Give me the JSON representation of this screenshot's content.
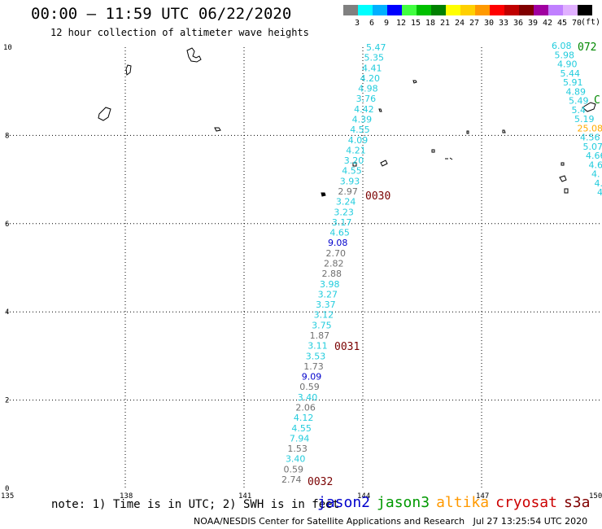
{
  "title": "00:00 – 11:59 UTC 06/22/2020",
  "subtitle": "12 hour collection of altimeter wave heights",
  "legend": {
    "colors": [
      "#808080",
      "#00ffff",
      "#00b0ff",
      "#0000ff",
      "#40ff40",
      "#00c000",
      "#008000",
      "#ffff00",
      "#ffd000",
      "#ff9900",
      "#ff0000",
      "#c00000",
      "#800000",
      "#a000a0",
      "#c080ff",
      "#e0b0ff",
      "#000000"
    ],
    "labels": [
      "3",
      "6",
      "9",
      "12",
      "15",
      "18",
      "21",
      "24",
      "27",
      "30",
      "33",
      "36",
      "39",
      "42",
      "45",
      "70"
    ],
    "unit": "(ft)"
  },
  "axes": {
    "x_ticks": [
      "135",
      "138",
      "141",
      "144",
      "147",
      "150"
    ],
    "y_ticks": [
      "0",
      "2",
      "4",
      "6",
      "8",
      "10"
    ]
  },
  "swh_track": [
    {
      "v": "5.47",
      "c": "#22ccdd"
    },
    {
      "v": "5.35",
      "c": "#22ccdd"
    },
    {
      "v": "4.41",
      "c": "#22ccdd"
    },
    {
      "v": "4.20",
      "c": "#22ccdd"
    },
    {
      "v": "4.98",
      "c": "#22ccdd"
    },
    {
      "v": "3.76",
      "c": "#22ccdd"
    },
    {
      "v": "4.42",
      "c": "#22ccdd"
    },
    {
      "v": "4.39",
      "c": "#22ccdd"
    },
    {
      "v": "4.55",
      "c": "#22ccdd"
    },
    {
      "v": "4.09",
      "c": "#22ccdd"
    },
    {
      "v": "4.21",
      "c": "#22ccdd"
    },
    {
      "v": "3.20",
      "c": "#22ccdd"
    },
    {
      "v": "4.55",
      "c": "#22ccdd"
    },
    {
      "v": "3.93",
      "c": "#22ccdd"
    },
    {
      "v": "2.97",
      "c": "#707070"
    },
    {
      "v": "3.24",
      "c": "#22ccdd"
    },
    {
      "v": "3.23",
      "c": "#22ccdd"
    },
    {
      "v": "3.17",
      "c": "#22ccdd"
    },
    {
      "v": "4.65",
      "c": "#22ccdd"
    },
    {
      "v": "9.08",
      "c": "#0000cc"
    },
    {
      "v": "2.70",
      "c": "#707070"
    },
    {
      "v": "2.82",
      "c": "#707070"
    },
    {
      "v": "2.88",
      "c": "#707070"
    },
    {
      "v": "3.98",
      "c": "#22ccdd"
    },
    {
      "v": "3.27",
      "c": "#22ccdd"
    },
    {
      "v": "3.37",
      "c": "#22ccdd"
    },
    {
      "v": "3.12",
      "c": "#22ccdd"
    },
    {
      "v": "3.75",
      "c": "#22ccdd"
    },
    {
      "v": "1.87",
      "c": "#707070"
    },
    {
      "v": "3.11",
      "c": "#22ccdd"
    },
    {
      "v": "3.53",
      "c": "#22ccdd"
    },
    {
      "v": "1.73",
      "c": "#707070"
    },
    {
      "v": "9.09",
      "c": "#0000cc"
    },
    {
      "v": "0.59",
      "c": "#707070"
    },
    {
      "v": "3.40",
      "c": "#22ccdd"
    },
    {
      "v": "2.06",
      "c": "#707070"
    },
    {
      "v": "4.12",
      "c": "#22ccdd"
    },
    {
      "v": "4.55",
      "c": "#22ccdd"
    },
    {
      "v": "7.94",
      "c": "#22ccdd"
    },
    {
      "v": "1.53",
      "c": "#707070"
    },
    {
      "v": "3.40",
      "c": "#22ccdd"
    },
    {
      "v": "0.59",
      "c": "#707070"
    },
    {
      "v": "2.74",
      "c": "#707070"
    }
  ],
  "swh_track_right": [
    {
      "v": "6.08",
      "c": "#22ccdd"
    },
    {
      "v": "5.98",
      "c": "#22ccdd"
    },
    {
      "v": "4.90",
      "c": "#22ccdd"
    },
    {
      "v": "5.44",
      "c": "#22ccdd"
    },
    {
      "v": "5.91",
      "c": "#22ccdd"
    },
    {
      "v": "4.89",
      "c": "#22ccdd"
    },
    {
      "v": "5.49",
      "c": "#22ccdd"
    },
    {
      "v": "5.4",
      "c": "#22ccdd"
    },
    {
      "v": "5.19",
      "c": "#22ccdd"
    },
    {
      "v": "25.08",
      "c": "#ffaa00"
    },
    {
      "v": "4.56",
      "c": "#22ccdd"
    },
    {
      "v": "5.07",
      "c": "#22ccdd"
    },
    {
      "v": "4.66",
      "c": "#22ccdd"
    },
    {
      "v": "4.6",
      "c": "#22ccdd"
    },
    {
      "v": "4.",
      "c": "#22ccdd"
    },
    {
      "v": "4.",
      "c": "#22ccdd"
    },
    {
      "v": "4",
      "c": "#22ccdd"
    }
  ],
  "time_labels": [
    "0030",
    "0031",
    "0032"
  ],
  "right_time_labels": [
    "072",
    "C"
  ],
  "note": "note: 1) Time is in UTC; 2) SWH is in feet",
  "satellites": [
    {
      "name": "jason2",
      "color": "#0000cc"
    },
    {
      "name": "jason3",
      "color": "#009900"
    },
    {
      "name": "altika",
      "color": "#ff9900"
    },
    {
      "name": "cryosat",
      "color": "#cc0000"
    },
    {
      "name": "s3a",
      "color": "#800000"
    }
  ],
  "footer": "NOAA/NESDIS Center for Satellite Applications and Research   Jul 27 13:25:54 UTC 2020"
}
